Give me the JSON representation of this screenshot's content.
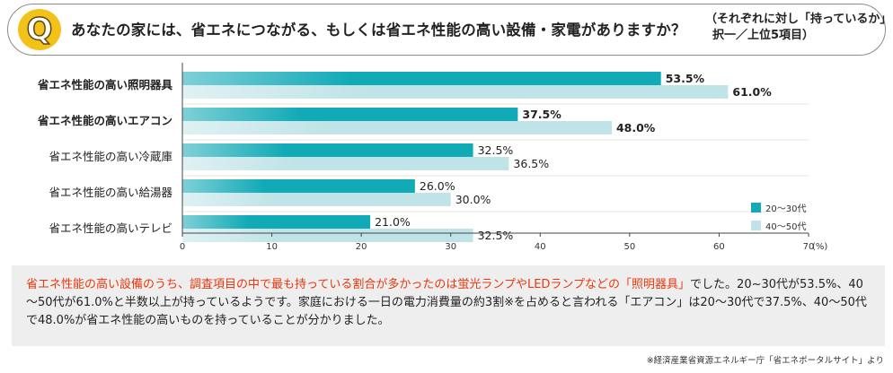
{
  "header": {
    "q_letter": "Q",
    "question": "あなたの家には、省エネにつながる、もしくは省エネ性能の高い設備・家電がありますか？",
    "note_line1": "（それぞれに対し「持っているか」",
    "note_line2": "択一／上位5項目）"
  },
  "chart_data": {
    "type": "bar",
    "orientation": "horizontal",
    "categories": [
      "省エネ性能の高い照明器具",
      "省エネ性能の高いエアコン",
      "省エネ性能の高い冷蔵庫",
      "省エネ性能の高い給湯器",
      "省エネ性能の高いテレビ"
    ],
    "bold_categories": [
      true,
      true,
      false,
      false,
      false
    ],
    "series": [
      {
        "name": "20〜30代",
        "color": "#12aab7",
        "values": [
          53.5,
          37.5,
          32.5,
          26.0,
          21.0
        ],
        "labels": [
          "53.5%",
          "37.5%",
          "32.5%",
          "26.0%",
          "21.0%"
        ]
      },
      {
        "name": "40〜50代",
        "color": "#bfe3e6",
        "values": [
          61.0,
          48.0,
          36.5,
          30.0,
          32.5
        ],
        "labels": [
          "61.0%",
          "48.0%",
          "36.5%",
          "30.0%",
          "32.5%"
        ]
      }
    ],
    "xlim": [
      0,
      70
    ],
    "ticks": [
      "0",
      "10",
      "20",
      "30",
      "40",
      "50",
      "60",
      "70"
    ],
    "unit": "(%)",
    "legend_position": "right"
  },
  "summary": {
    "highlight": "省エネ性能の高い設備のうち、調査項目の中で最も持っている割合が多かったのは蛍光ランプやLEDランプなどの「照明器具」",
    "rest": "でした。20~30代が53.5%、40～50代が61.0%と半数以上が持っているようです。家庭における一日の電力消費量の約3割※を占めると言われる「エアコン」は20～30代で37.5%、40～50代で48.0%が省エネ性能の高いものを持っていることが分かりました。"
  },
  "source": "※経済産業省資源エネルギー庁「省エネポータルサイト」より"
}
